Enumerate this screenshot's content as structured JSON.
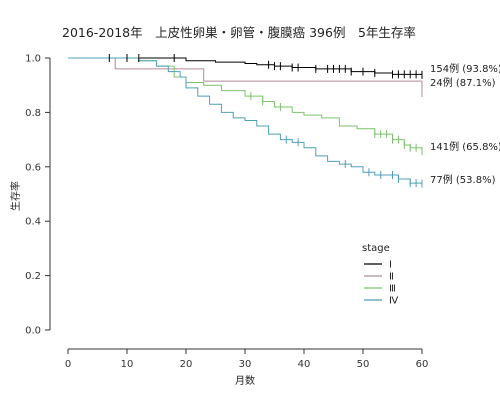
{
  "chart_data": {
    "type": "line",
    "title": "2016-2018年　上皮性卵巣・卵管・腹膜癌 396例　5年生存率",
    "xlabel": "月数",
    "ylabel": "生存率",
    "xlim": [
      0,
      60
    ],
    "ylim": [
      0,
      1
    ],
    "x_ticks": [
      0,
      10,
      20,
      30,
      40,
      50,
      60
    ],
    "y_ticks": [
      "0.0",
      "0.2",
      "0.4",
      "0.6",
      "0.8",
      "1.0"
    ],
    "legend": {
      "title": "stage",
      "placement": "right"
    },
    "series": [
      {
        "name": "Ⅰ",
        "color": "#000000",
        "points": [
          [
            0,
            1.0
          ],
          [
            18,
            1.0
          ],
          [
            20,
            0.99
          ],
          [
            25,
            0.985
          ],
          [
            30,
            0.98
          ],
          [
            32,
            0.975
          ],
          [
            35,
            0.97
          ],
          [
            38,
            0.965
          ],
          [
            42,
            0.96
          ],
          [
            48,
            0.95
          ],
          [
            52,
            0.945
          ],
          [
            55,
            0.94
          ],
          [
            60,
            0.938
          ]
        ],
        "censors": [
          7,
          10,
          12,
          18,
          34,
          35,
          36,
          38,
          39,
          42,
          44,
          45,
          46,
          47,
          48,
          50,
          52,
          55,
          56,
          57,
          58,
          59,
          60
        ],
        "end_label": "154例 (93.8%)"
      },
      {
        "name": "Ⅱ",
        "color": "#b08a99",
        "points": [
          [
            0,
            1.0
          ],
          [
            8,
            1.0
          ],
          [
            8,
            0.96
          ],
          [
            23,
            0.96
          ],
          [
            23,
            0.915
          ],
          [
            60,
            0.915
          ],
          [
            60,
            0.871
          ]
        ],
        "censors": [
          60
        ],
        "end_label": "24例 (87.1%)"
      },
      {
        "name": "Ⅲ",
        "color": "#7cc26c",
        "points": [
          [
            0,
            1.0
          ],
          [
            12,
            0.99
          ],
          [
            15,
            0.97
          ],
          [
            18,
            0.93
          ],
          [
            20,
            0.91
          ],
          [
            23,
            0.9
          ],
          [
            26,
            0.88
          ],
          [
            30,
            0.86
          ],
          [
            33,
            0.84
          ],
          [
            35,
            0.82
          ],
          [
            38,
            0.8
          ],
          [
            40,
            0.79
          ],
          [
            43,
            0.78
          ],
          [
            46,
            0.75
          ],
          [
            49,
            0.74
          ],
          [
            52,
            0.72
          ],
          [
            55,
            0.7
          ],
          [
            57,
            0.68
          ],
          [
            58,
            0.67
          ],
          [
            60,
            0.658
          ]
        ],
        "censors": [
          31,
          33,
          36,
          52,
          53,
          54,
          55,
          56,
          57,
          58,
          59,
          60
        ],
        "end_label": "141例 (65.8%)"
      },
      {
        "name": "Ⅳ",
        "color": "#4f9fb8",
        "points": [
          [
            0,
            1.0
          ],
          [
            12,
            0.99
          ],
          [
            15,
            0.97
          ],
          [
            17,
            0.95
          ],
          [
            19,
            0.93
          ],
          [
            20,
            0.89
          ],
          [
            22,
            0.86
          ],
          [
            24,
            0.83
          ],
          [
            26,
            0.8
          ],
          [
            28,
            0.78
          ],
          [
            30,
            0.77
          ],
          [
            32,
            0.75
          ],
          [
            34,
            0.72
          ],
          [
            36,
            0.7
          ],
          [
            38,
            0.69
          ],
          [
            40,
            0.67
          ],
          [
            42,
            0.64
          ],
          [
            44,
            0.62
          ],
          [
            46,
            0.61
          ],
          [
            48,
            0.6
          ],
          [
            50,
            0.58
          ],
          [
            52,
            0.57
          ],
          [
            56,
            0.555
          ],
          [
            58,
            0.54
          ],
          [
            60,
            0.538
          ]
        ],
        "censors": [
          37,
          39,
          47,
          51,
          53,
          55,
          56,
          58,
          59,
          60
        ],
        "end_label": "77例 (53.8%)"
      }
    ]
  }
}
